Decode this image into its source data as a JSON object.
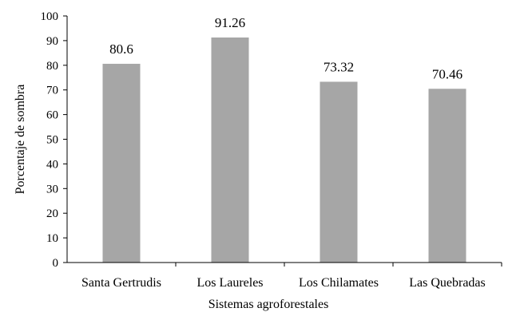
{
  "chart_data": {
    "type": "bar",
    "categories": [
      "Santa Gertrudis",
      "Los Laureles",
      "Los Chilamates",
      "Las Quebradas"
    ],
    "values": [
      80.6,
      91.26,
      73.32,
      70.46
    ],
    "value_labels": [
      "80.6",
      "91.26",
      "73.32",
      "70.46"
    ],
    "xlabel": "Sistemas agroforestales",
    "ylabel": "Porcentaje de sombra",
    "ylim": [
      0,
      100
    ],
    "yticks": [
      0,
      10,
      20,
      30,
      40,
      50,
      60,
      70,
      80,
      90,
      100
    ],
    "grid": false,
    "legend": "none",
    "bar_color": "#a6a6a6",
    "axis_color": "#000000"
  }
}
